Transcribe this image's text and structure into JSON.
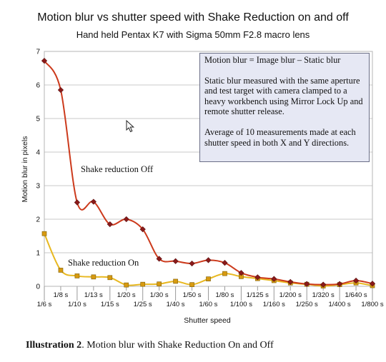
{
  "caption": {
    "label": "Illustration 2",
    "text": ". Motion blur with Shake Reduction On and Off"
  },
  "note": {
    "lines": [
      "Motion blur = Image blur – Static blur",
      "Static blur measured with the same aperture and test target with camera clamped to a heavy workbench using Mirror Lock Up and remote shutter release.",
      "Average of 10 measurements made at each shutter speed in both X and Y directions."
    ]
  },
  "chart_data": {
    "type": "line",
    "title": "Motion blur vs shutter speed with Shake Reduction on and off",
    "subtitle": "Hand held Pentax K7 with Sigma 50mm F2.8 macro lens",
    "xlabel": "Shutter speed",
    "ylabel": "Motion blur in pixels",
    "ylim": [
      0,
      7
    ],
    "yticks": [
      "0",
      "1",
      "2",
      "3",
      "4",
      "5",
      "6",
      "7"
    ],
    "grid": true,
    "categories": [
      "1/6 s",
      "1/8 s",
      "1/10 s",
      "1/13 s",
      "1/15 s",
      "1/20 s",
      "1/25 s",
      "1/30 s",
      "1/40 s",
      "1/50 s",
      "1/60 s",
      "1/80 s",
      "1/100 s",
      "1/125 s",
      "1/160 s",
      "1/200 s",
      "1/250 s",
      "1/320 s",
      "1/400 s",
      "1/640 s",
      "1/800 s"
    ],
    "series": [
      {
        "name": "Shake reduction Off",
        "color": "#cc3a1c",
        "marker_color": "#8b1a1a",
        "values": [
          6.72,
          5.85,
          2.5,
          2.52,
          1.85,
          2.0,
          1.7,
          0.82,
          0.75,
          0.68,
          0.78,
          0.7,
          0.4,
          0.27,
          0.22,
          0.13,
          0.07,
          0.05,
          0.07,
          0.17,
          0.08
        ]
      },
      {
        "name": "Shake reduction On",
        "color": "#e8b820",
        "marker_color": "#d89a10",
        "values": [
          1.57,
          0.48,
          0.31,
          0.28,
          0.26,
          0.04,
          0.06,
          0.07,
          0.15,
          0.05,
          0.22,
          0.38,
          0.29,
          0.23,
          0.17,
          0.1,
          0.06,
          0.01,
          0.05,
          0.1,
          0.02
        ]
      }
    ]
  }
}
